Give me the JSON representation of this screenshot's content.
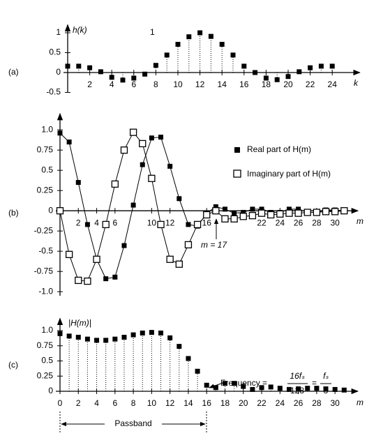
{
  "chart_data": [
    {
      "type": "stem",
      "panel_label": "(a)",
      "y_label": "h(k)",
      "x_label": "k",
      "annotation": "1",
      "x": [
        0,
        1,
        2,
        3,
        4,
        5,
        6,
        7,
        8,
        9,
        10,
        11,
        12,
        13,
        14,
        15,
        16,
        17,
        18,
        19,
        20,
        21,
        22,
        23,
        24
      ],
      "values": [
        0.16,
        0.16,
        0.12,
        0.02,
        -0.12,
        -0.19,
        -0.14,
        -0.04,
        0.18,
        0.44,
        0.71,
        0.9,
        1.0,
        0.91,
        0.71,
        0.44,
        0.16,
        0,
        -0.14,
        -0.18,
        -0.1,
        0.02,
        0.12,
        0.16,
        0.16
      ],
      "color": "#000000",
      "xlim": [
        0,
        26.5
      ],
      "ylim": [
        -0.5,
        1.2
      ],
      "xticks": [
        2,
        4,
        6,
        8,
        10,
        12,
        14,
        16,
        18,
        20,
        22,
        24
      ],
      "yticks": [
        -0.5,
        0,
        0.5,
        1
      ]
    },
    {
      "type": "line",
      "panel_label": "(b)",
      "x_label": "m",
      "annotation": "m = 17",
      "x": [
        0,
        1,
        2,
        3,
        4,
        5,
        6,
        7,
        8,
        9,
        10,
        11,
        12,
        13,
        14,
        15,
        16,
        17,
        18,
        19,
        20,
        21,
        22,
        23,
        24,
        25,
        26,
        27,
        28,
        29,
        30,
        31
      ],
      "series": [
        {
          "name": "Real part of H(m)",
          "color": "#000000",
          "marker": "filled",
          "values": [
            0.96,
            0.85,
            0.35,
            -0.17,
            -0.6,
            -0.84,
            -0.82,
            -0.43,
            0.07,
            0.57,
            0.9,
            0.91,
            0.55,
            0.15,
            -0.17,
            -0.19,
            -0.03,
            0.05,
            0.02,
            -0.03,
            -0.02,
            0.02,
            0.02,
            -0.02,
            -0.02,
            0.02,
            0.02,
            -0.02,
            -0.02,
            0.01,
            0.01,
            0
          ]
        },
        {
          "name": "Imaginary part of H(m)",
          "color": "#000000",
          "marker": "open",
          "values": [
            0,
            -0.54,
            -0.86,
            -0.87,
            -0.6,
            -0.17,
            0.33,
            0.75,
            0.97,
            0.83,
            0.4,
            -0.17,
            -0.6,
            -0.66,
            -0.42,
            -0.17,
            -0.05,
            0,
            -0.1,
            -0.1,
            -0.07,
            -0.06,
            -0.03,
            -0.05,
            -0.04,
            -0.03,
            -0.03,
            -0.02,
            -0.02,
            -0.01,
            -0.01,
            0
          ]
        }
      ],
      "xlim": [
        0,
        32.5
      ],
      "ylim": [
        -1.05,
        1.2
      ],
      "xticks": [
        2,
        4,
        6,
        10,
        12,
        16,
        22,
        24,
        26,
        28,
        30
      ],
      "yticks": [
        {
          "value": 1,
          "label": "1.0"
        },
        0.75,
        0.5,
        0.25,
        0,
        -0.25,
        -0.5,
        -0.75,
        {
          "value": -1,
          "label": "-1.0"
        }
      ]
    },
    {
      "type": "stem",
      "panel_label": "(c)",
      "y_label": "|H(m)|",
      "x_label": "m",
      "annotation": {
        "text": "Frequency =",
        "fraction1": {
          "numerator": "16fₛ",
          "denominator": "128"
        },
        "equals": "=",
        "fraction2": {
          "numerator": "fₛ",
          "denominator": "8"
        }
      },
      "passband": "Passband",
      "x": [
        0,
        1,
        2,
        3,
        4,
        5,
        6,
        7,
        8,
        9,
        10,
        11,
        12,
        13,
        14,
        15,
        16,
        17,
        18,
        19,
        20,
        21,
        22,
        23,
        24,
        25,
        26,
        27,
        28,
        29,
        30,
        31
      ],
      "values": [
        0.95,
        0.91,
        0.89,
        0.86,
        0.84,
        0.84,
        0.86,
        0.89,
        0.93,
        0.96,
        0.97,
        0.96,
        0.88,
        0.74,
        0.54,
        0.33,
        0.1,
        0.06,
        0.13,
        0.13,
        0.08,
        0.03,
        0.06,
        0.07,
        0.05,
        0.03,
        0.04,
        0.05,
        0.05,
        0.04,
        0.03,
        0.02
      ],
      "color": "#000000",
      "xlim": [
        0,
        32.5
      ],
      "ylim": [
        0,
        1.2
      ],
      "xticks": [
        0,
        2,
        4,
        6,
        8,
        10,
        12,
        14,
        16,
        18,
        20,
        22,
        24,
        26,
        28,
        30
      ],
      "yticks": [
        0,
        0.25,
        0.5,
        0.75,
        {
          "value": 1,
          "label": "1.0"
        }
      ]
    }
  ]
}
